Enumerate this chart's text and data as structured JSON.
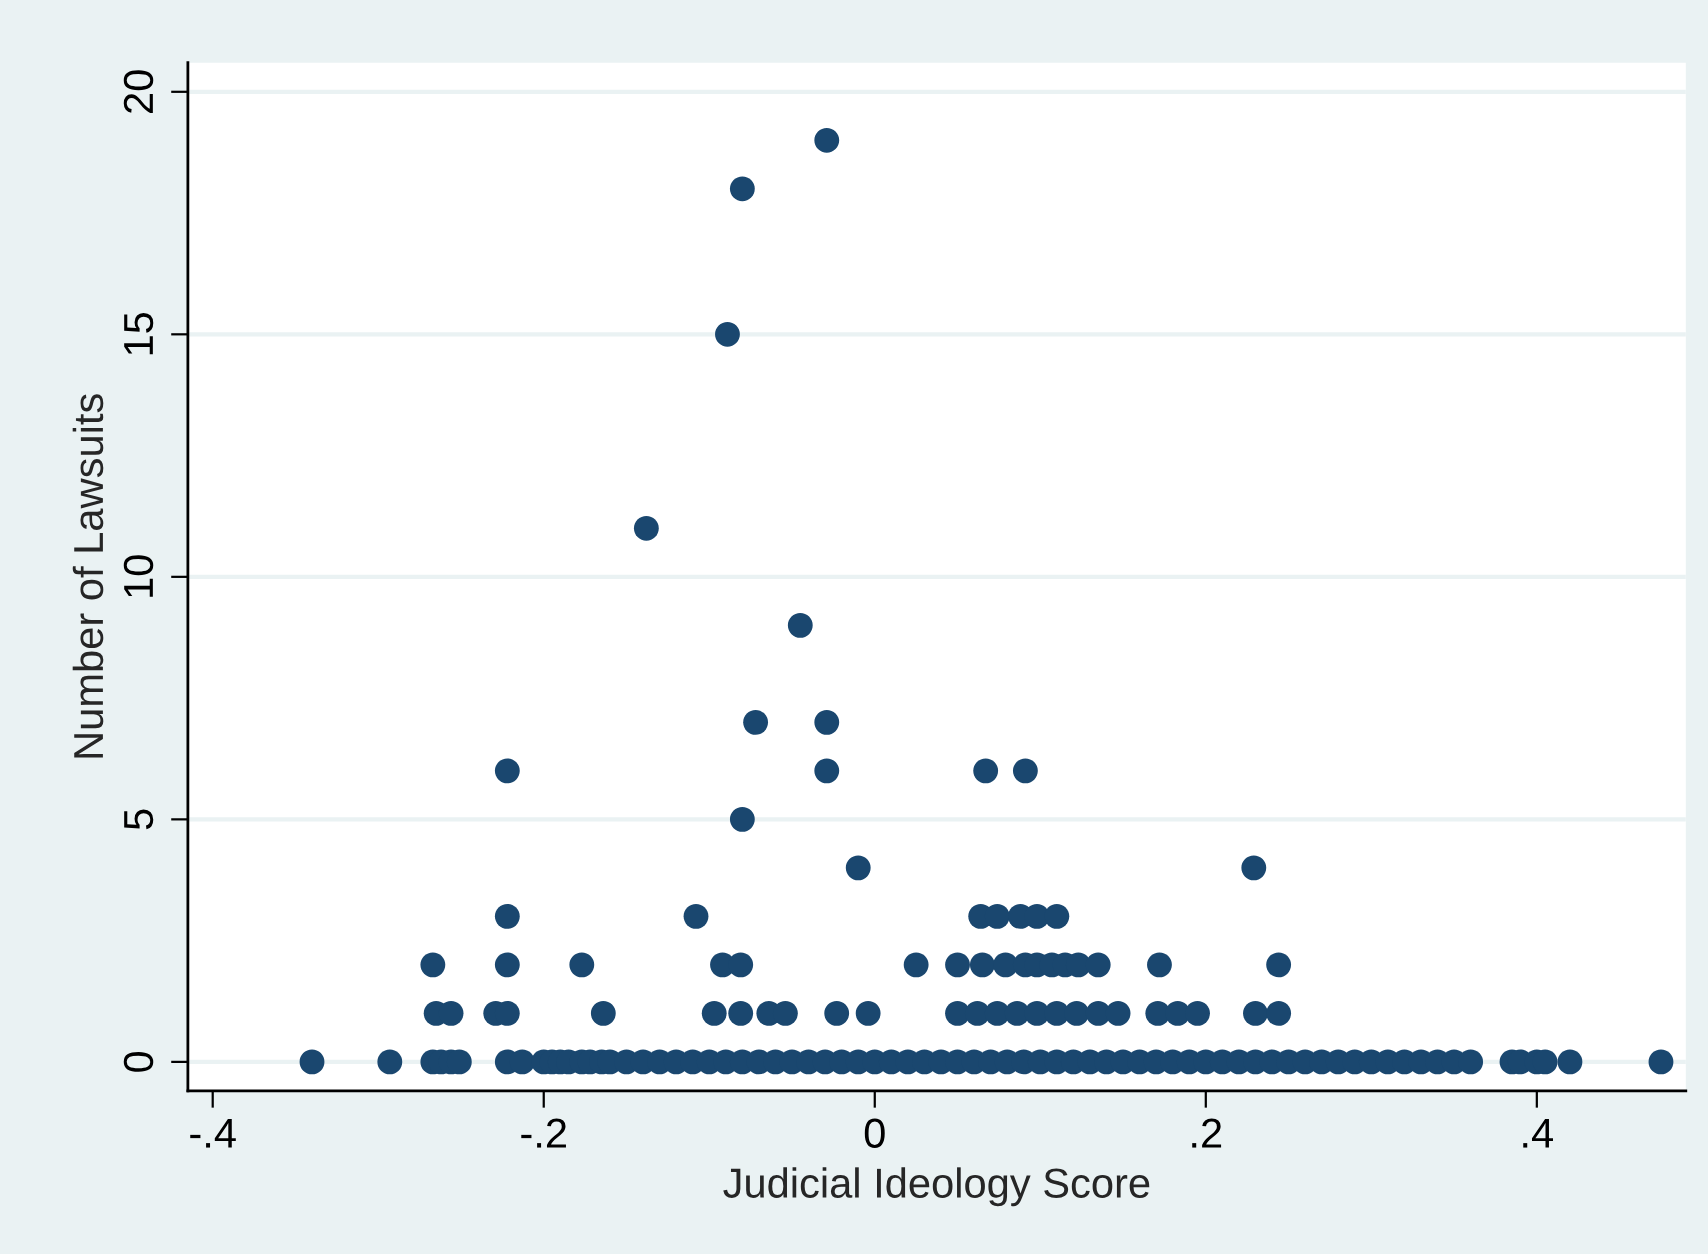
{
  "chart_data": {
    "type": "scatter",
    "xlabel": "Judicial Ideology Score",
    "ylabel": "Number of Lawsuits",
    "xlim": [
      -0.415,
      0.49
    ],
    "ylim": [
      -0.6,
      20.6
    ],
    "xticks": [
      {
        "value": -0.4,
        "label": "-.4"
      },
      {
        "value": -0.2,
        "label": "-.2"
      },
      {
        "value": 0,
        "label": "0"
      },
      {
        "value": 0.2,
        "label": ".2"
      },
      {
        "value": 0.4,
        "label": ".4"
      }
    ],
    "yticks": [
      0,
      5,
      10,
      15,
      20
    ],
    "grid": "y",
    "marker": "circle",
    "series": [
      {
        "color": "#1a476f",
        "x": [
          -0.029,
          -0.08,
          -0.089,
          -0.138,
          -0.045,
          -0.072,
          -0.029,
          -0.222,
          -0.029,
          0.067,
          0.091,
          -0.08,
          -0.01,
          0.229
        ],
        "values": [
          19,
          18,
          15,
          11,
          9,
          7,
          7,
          6,
          6,
          6,
          6,
          5,
          4,
          4
        ]
      },
      {
        "color": "#1a476f",
        "x": [
          -0.222,
          -0.108,
          0.064,
          0.074,
          0.088,
          0.098,
          0.11
        ],
        "values": [
          3,
          3,
          3,
          3,
          3,
          3,
          3
        ]
      },
      {
        "color": "#1a476f",
        "x": [
          -0.267,
          -0.222,
          -0.177,
          -0.092,
          -0.081,
          0.025,
          0.05,
          0.065
        ],
        "values": [
          2,
          2,
          2,
          2,
          2,
          2,
          2,
          2
        ]
      },
      {
        "color": "#1a476f",
        "x": [
          0.079,
          0.091,
          0.098,
          0.107,
          0.115,
          0.123,
          0.135,
          0.172,
          0.244
        ],
        "values": [
          2,
          2,
          2,
          2,
          2,
          2,
          2,
          2,
          2
        ]
      },
      {
        "color": "#1a476f",
        "x": [
          -0.265,
          -0.256,
          -0.229,
          -0.222,
          -0.164,
          -0.097,
          -0.081,
          -0.064,
          -0.054,
          -0.023
        ],
        "values": [
          1,
          1,
          1,
          1,
          1,
          1,
          1,
          1,
          1,
          1
        ]
      },
      {
        "color": "#1a476f",
        "x": [
          -0.004,
          0.05,
          0.062,
          0.074,
          0.086,
          0.098,
          0.11,
          0.122,
          0.135,
          0.147
        ],
        "values": [
          1,
          1,
          1,
          1,
          1,
          1,
          1,
          1,
          1,
          1
        ]
      },
      {
        "color": "#1a476f",
        "x": [
          0.171,
          0.183,
          0.195,
          0.23,
          0.244
        ],
        "values": [
          1,
          1,
          1,
          1,
          1
        ]
      },
      {
        "color": "#1a476f",
        "x": [
          -0.34,
          -0.293,
          -0.267,
          -0.262,
          -0.256,
          -0.251,
          -0.222,
          -0.213,
          -0.2
        ],
        "values": [
          0,
          0,
          0,
          0,
          0,
          0,
          0,
          0,
          0
        ]
      },
      {
        "color": "#1a476f",
        "x": [
          -0.195,
          -0.19,
          -0.185,
          -0.177,
          -0.172,
          -0.165,
          -0.16,
          -0.15,
          -0.14,
          -0.13
        ],
        "values": [
          0,
          0,
          0,
          0,
          0,
          0,
          0,
          0,
          0,
          0
        ]
      },
      {
        "color": "#1a476f",
        "x": [
          -0.12,
          -0.11,
          -0.1,
          -0.09,
          -0.08,
          -0.07,
          -0.06,
          -0.05,
          -0.04,
          -0.03
        ],
        "values": [
          0,
          0,
          0,
          0,
          0,
          0,
          0,
          0,
          0,
          0
        ]
      },
      {
        "color": "#1a476f",
        "x": [
          -0.02,
          -0.01,
          0,
          0.01,
          0.02,
          0.03,
          0.04,
          0.05,
          0.06,
          0.07
        ],
        "values": [
          0,
          0,
          0,
          0,
          0,
          0,
          0,
          0,
          0,
          0
        ]
      },
      {
        "color": "#1a476f",
        "x": [
          0.08,
          0.09,
          0.1,
          0.11,
          0.12,
          0.13,
          0.14,
          0.15,
          0.16,
          0.17
        ],
        "values": [
          0,
          0,
          0,
          0,
          0,
          0,
          0,
          0,
          0,
          0
        ]
      },
      {
        "color": "#1a476f",
        "x": [
          0.18,
          0.19,
          0.2,
          0.21,
          0.22,
          0.23,
          0.24,
          0.25,
          0.26,
          0.27
        ],
        "values": [
          0,
          0,
          0,
          0,
          0,
          0,
          0,
          0,
          0,
          0
        ]
      },
      {
        "color": "#1a476f",
        "x": [
          0.28,
          0.29,
          0.3,
          0.31,
          0.32,
          0.33,
          0.34,
          0.35,
          0.36,
          0.385
        ],
        "values": [
          0,
          0,
          0,
          0,
          0,
          0,
          0,
          0,
          0,
          0
        ]
      },
      {
        "color": "#1a476f",
        "x": [
          0.39,
          0.4,
          0.405,
          0.42,
          0.475
        ],
        "values": [
          0,
          0,
          0,
          0,
          0
        ]
      }
    ]
  }
}
